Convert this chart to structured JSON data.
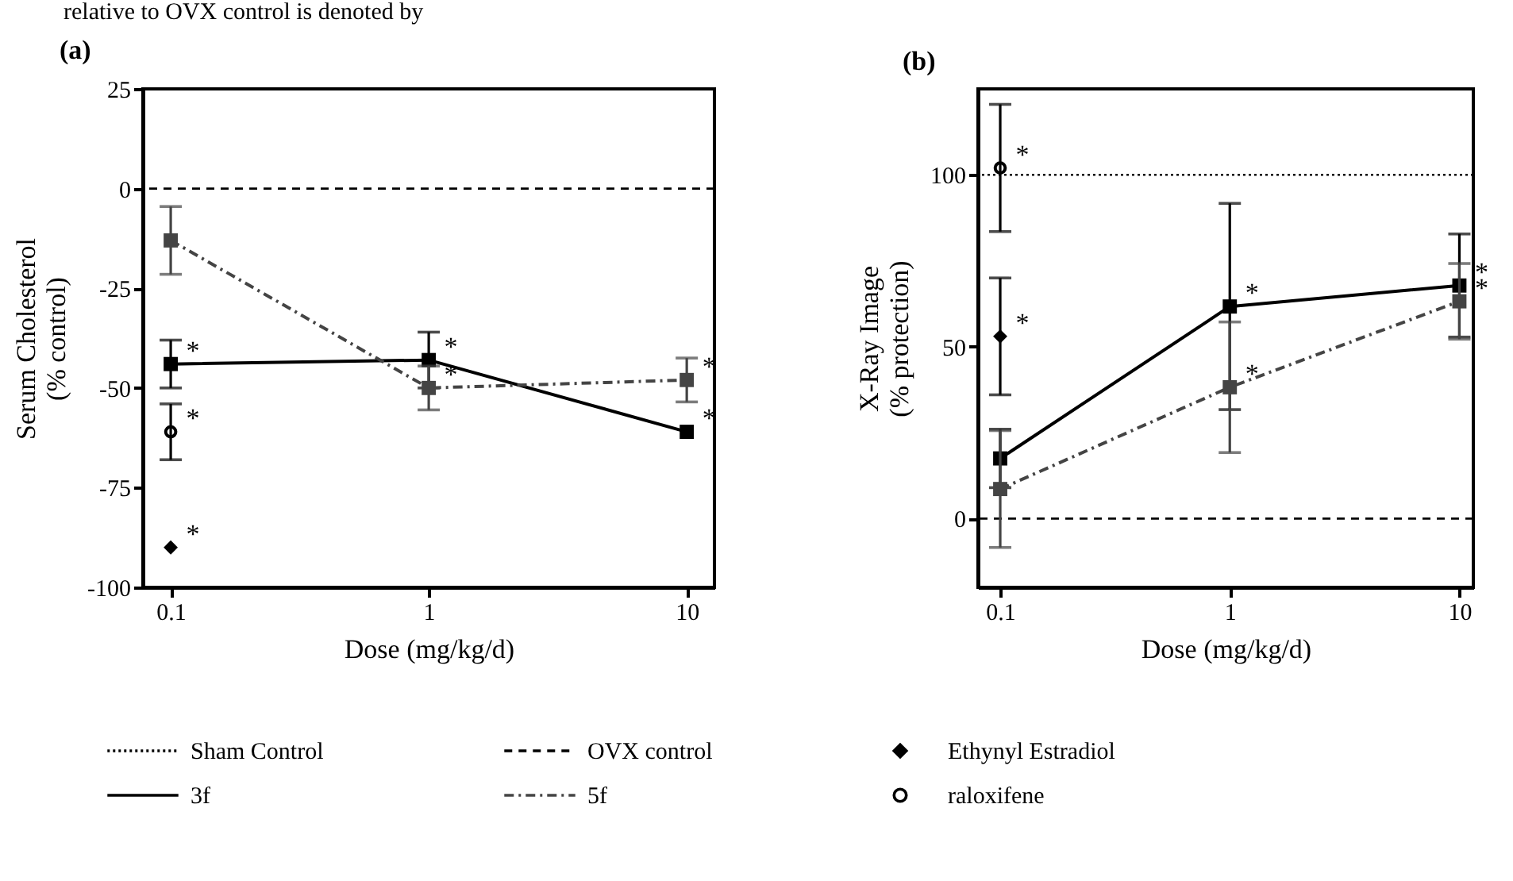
{
  "chart_data": [
    {
      "type": "line",
      "title": "(a)",
      "xlabel": "Dose (mg/kg/d)",
      "ylabel": "Serum Cholesterol\n(% control)",
      "log": "x",
      "xlim": [
        0.078,
        12.8
      ],
      "xticks": [
        0.1,
        1,
        10
      ],
      "ylim": [
        -100,
        25
      ],
      "yticks": [
        -100,
        -75,
        -50,
        -25,
        0,
        25
      ],
      "grid": false,
      "ref_lines": [
        {
          "axis": "y",
          "value": 0,
          "line_style": "dashed",
          "color": "#000000"
        }
      ],
      "series": [
        {
          "type": "scatter",
          "marker": "diamond",
          "color": "#000000",
          "x": [
            0.1
          ],
          "values": [
            -90
          ]
        },
        {
          "marker": "square",
          "line_style": "solid",
          "color": "#000000",
          "x": [
            0.1,
            1,
            10
          ],
          "values": [
            -44,
            -43,
            -61
          ],
          "errors": [
            6,
            7,
            null
          ]
        },
        {
          "marker": "square",
          "line_style": "dashed",
          "color": "#444444",
          "x": [
            0.1,
            1,
            10
          ],
          "values": [
            -13,
            -50,
            -48
          ],
          "errors": [
            8.5,
            5.5,
            5.5
          ]
        },
        {
          "type": "scatter",
          "marker": "circle",
          "color": "#000000",
          "x": [
            0.1
          ],
          "values": [
            -61
          ],
          "errors": [
            7
          ]
        }
      ],
      "annotations": [
        "relative to OVX control is denoted by",
        {
          "text": "*",
          "x": 0.1,
          "y": -44
        },
        {
          "text": "*",
          "x": 0.1,
          "y": -61
        },
        {
          "text": "*",
          "x": 0.1,
          "y": -90
        },
        {
          "text": "*",
          "x": 1,
          "y": -43
        },
        {
          "text": "*",
          "x": 1,
          "y": -50
        },
        {
          "text": "*",
          "x": 10,
          "y": -48
        },
        {
          "text": "*",
          "x": 10,
          "y": -61
        }
      ]
    },
    {
      "type": "line",
      "title": "(b)",
      "xlabel": "Dose (mg/kg/d)",
      "ylabel": "X-Ray Image\n(% protection)",
      "log": "x",
      "xlim": [
        0.08,
        11.5
      ],
      "xticks": [
        0.1,
        1,
        10
      ],
      "ylim": [
        -20,
        125
      ],
      "yticks": [
        0,
        50,
        100
      ],
      "grid": false,
      "legend": "bottom",
      "ref_lines": [
        {
          "axis": "y",
          "value": 100,
          "label": "Sham Control",
          "line_style": "dotted",
          "color": "#000000"
        },
        {
          "axis": "y",
          "value": 0,
          "label": "OVX control",
          "line_style": "dashed",
          "color": "#000000"
        }
      ],
      "series": [
        {
          "name": "Ethynyl Estradiol",
          "type": "scatter",
          "marker": "diamond",
          "color": "#000000",
          "x": [
            0.1
          ],
          "values": [
            53
          ],
          "errors": [
            17
          ]
        },
        {
          "name": "3f",
          "marker": "square",
          "line_style": "solid",
          "color": "#000000",
          "x": [
            0.1,
            1,
            10
          ],
          "values": [
            17.5,
            61.7,
            67.8
          ],
          "errors": [
            8.5,
            30,
            15
          ]
        },
        {
          "name": "5f",
          "marker": "square",
          "line_style": "dashed",
          "color": "#444444",
          "x": [
            0.1,
            1,
            10
          ],
          "values": [
            8.6,
            38.2,
            63.2
          ],
          "errors": [
            17,
            19,
            11
          ]
        },
        {
          "name": "raloxifene",
          "type": "scatter",
          "marker": "circle",
          "color": "#000000",
          "x": [
            0.1
          ],
          "values": [
            102
          ],
          "errors": [
            18.5
          ]
        }
      ],
      "annotations": [
        {
          "text": "*",
          "x": 0.1,
          "y": 102
        },
        {
          "text": "*",
          "x": 0.1,
          "y": 53
        },
        {
          "text": "*",
          "x": 1,
          "y": 61.7
        },
        {
          "text": "*",
          "x": 1,
          "y": 38.2
        },
        {
          "text": "*",
          "x": 10,
          "y": 67.8
        },
        {
          "text": "*",
          "x": 10,
          "y": 63.2
        }
      ]
    }
  ]
}
